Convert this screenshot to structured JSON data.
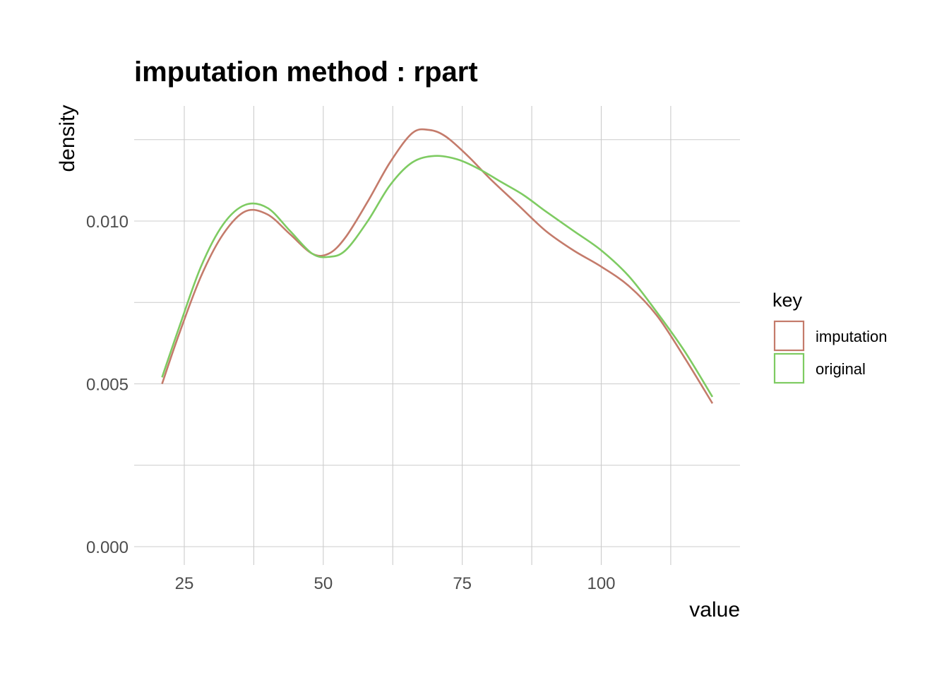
{
  "chart_data": {
    "type": "line",
    "title": "imputation method : rpart",
    "xlabel": "value",
    "ylabel": "density",
    "xlim": [
      17.5,
      122.5
    ],
    "ylim": [
      -0.0005,
      0.0135
    ],
    "x_ticks": [
      25,
      50,
      75,
      100
    ],
    "x_tick_labels": [
      "25",
      "50",
      "75",
      "100"
    ],
    "y_ticks": [
      0.0,
      0.005,
      0.01
    ],
    "y_tick_labels": [
      "0.000",
      "0.005",
      "0.010"
    ],
    "grid": true,
    "legend": {
      "title": "key",
      "position": "right"
    },
    "series": [
      {
        "name": "imputation",
        "color": "#c47b6b",
        "x": [
          21,
          24,
          28,
          32,
          36,
          40,
          44,
          48,
          51,
          54,
          58,
          62,
          66,
          69,
          72,
          76,
          80,
          85,
          90,
          95,
          100,
          105,
          110,
          115,
          120
        ],
        "y": [
          0.005,
          0.0065,
          0.0083,
          0.0096,
          0.0103,
          0.0102,
          0.0096,
          0.009,
          0.009,
          0.0095,
          0.0106,
          0.0118,
          0.0127,
          0.0128,
          0.0126,
          0.012,
          0.0113,
          0.0105,
          0.0097,
          0.0091,
          0.0086,
          0.008,
          0.0071,
          0.0058,
          0.0044
        ]
      },
      {
        "name": "original",
        "color": "#7ecb62",
        "x": [
          21,
          24,
          28,
          32,
          36,
          40,
          44,
          48,
          51,
          54,
          58,
          62,
          66,
          70,
          74,
          78,
          82,
          86,
          90,
          95,
          100,
          105,
          110,
          115,
          120
        ],
        "y": [
          0.0052,
          0.0067,
          0.0086,
          0.0099,
          0.0105,
          0.0104,
          0.0097,
          0.009,
          0.0089,
          0.0091,
          0.01,
          0.0111,
          0.0118,
          0.012,
          0.0119,
          0.0116,
          0.0112,
          0.0108,
          0.0103,
          0.0097,
          0.0091,
          0.0083,
          0.0072,
          0.006,
          0.0046
        ]
      }
    ]
  }
}
